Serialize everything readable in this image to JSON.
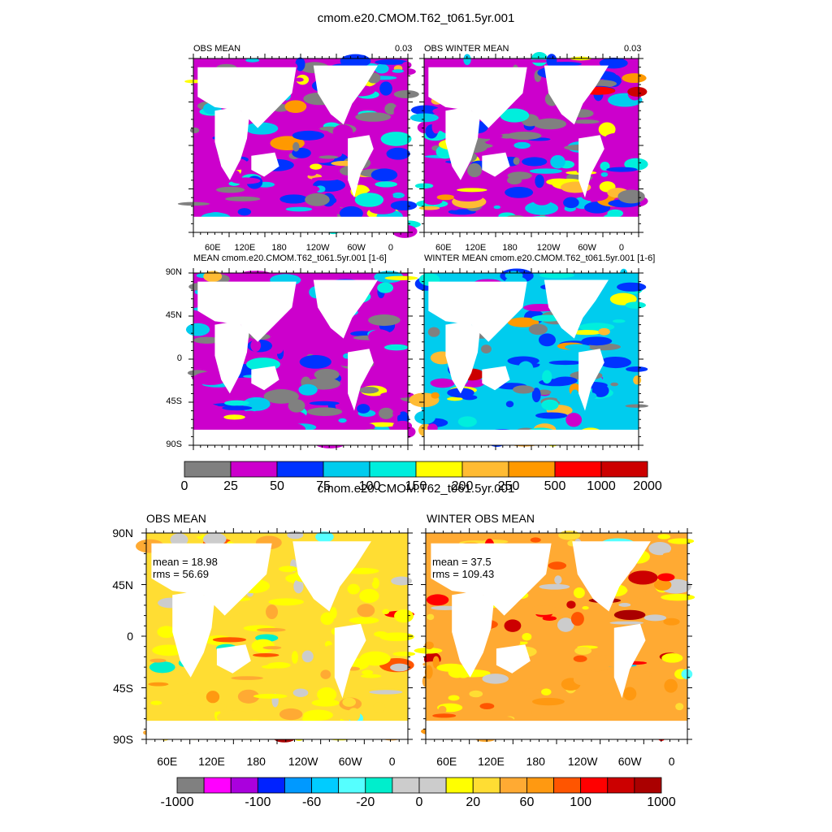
{
  "chart_data": [
    {
      "type": "heatmap",
      "title": "cmom.e20.CMOM.T62_t061.5yr.001",
      "panels": [
        {
          "title": "OBS MEAN",
          "corner_value": "0.03"
        },
        {
          "title": "OBS WINTER MEAN",
          "corner_value": "0.03"
        },
        {
          "title": "MEAN cmom.e20.CMOM.T62_t061.5yr.001 [1-6]"
        },
        {
          "title": "WINTER MEAN cmom.e20.CMOM.T62_t061.5yr.001 [1-6]"
        }
      ],
      "x_ticks": [
        "60E",
        "120E",
        "180",
        "120W",
        "60W",
        "0"
      ],
      "y_ticks": [
        "90N",
        "45N",
        "0",
        "45S",
        "90S"
      ],
      "colorbar": {
        "colors": [
          "#808080",
          "#cc00cc",
          "#0033ff",
          "#00ccee",
          "#00eedd",
          "#ffff00",
          "#ffbb33",
          "#ff9900",
          "#ff0000",
          "#cc0000"
        ],
        "labels": [
          "0",
          "25",
          "50",
          "75",
          "100",
          "150",
          "200",
          "250",
          "500",
          "1000",
          "2000"
        ]
      }
    },
    {
      "type": "heatmap",
      "title": "cmom.e20.CMOM.T62_t061.5yr.001",
      "panels": [
        {
          "title": "OBS MEAN",
          "mean_text": "mean = 18.98",
          "rms_text": "rms = 56.69"
        },
        {
          "title": "WINTER OBS MEAN",
          "mean_text": "mean = 37.5",
          "rms_text": "rms = 109.43"
        }
      ],
      "x_ticks": [
        "60E",
        "120E",
        "180",
        "120W",
        "60W",
        "0"
      ],
      "y_ticks": [
        "90N",
        "45N",
        "0",
        "45S",
        "90S"
      ],
      "colorbar": {
        "colors": [
          "#808080",
          "#ff00ff",
          "#aa00dd",
          "#0022ff",
          "#0099ff",
          "#00ccff",
          "#55ffff",
          "#00eecc",
          "#cccccc",
          "#cccccc",
          "#ffff00",
          "#ffdd33",
          "#ffaa33",
          "#ff9911",
          "#ff5500",
          "#ff0000",
          "#cc0000",
          "#aa0000"
        ],
        "labels": [
          "-1000",
          "-100",
          "-60",
          "-20",
          "0",
          "20",
          "60",
          "100",
          "1000"
        ]
      }
    }
  ]
}
